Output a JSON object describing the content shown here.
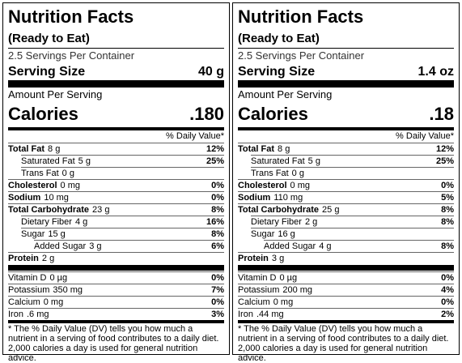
{
  "labels": [
    {
      "title": "Nutrition Facts",
      "subtitle": "(Ready to Eat)",
      "servings": "2.5 Servings Per Container",
      "serving_size_label": "Serving Size",
      "serving_size": "40 g",
      "amount_per_serving": "Amount Per Serving",
      "calories_label": "Calories",
      "calories": ".180",
      "dv_header": "% Daily Value*",
      "nutrients": [
        {
          "name": "Total Fat",
          "amount": "8 g",
          "dv": "12%"
        },
        {
          "name": "Saturated Fat",
          "amount": "5 g",
          "dv": "25%"
        },
        {
          "name": "Trans Fat",
          "amount": "0 g"
        },
        {
          "name": "Cholesterol",
          "amount": "0 mg",
          "dv": "0%"
        },
        {
          "name": "Sodium",
          "amount": "10 mg",
          "dv": "0%"
        },
        {
          "name": "Total Carbohydrate",
          "amount": "23 g",
          "dv": "8%"
        },
        {
          "name": "Dietary Fiber",
          "amount": "4 g",
          "dv": "16%"
        },
        {
          "name": "Sugar",
          "amount": "15 g",
          "dv": "8%"
        },
        {
          "name": "Added Sugar",
          "amount": "3 g",
          "dv": "6%"
        },
        {
          "name": "Protein",
          "amount": "2 g"
        }
      ],
      "vitamins": [
        {
          "name": "Vitamin D",
          "amount": "0 µg",
          "dv": "0%"
        },
        {
          "name": "Potassium",
          "amount": "350 mg",
          "dv": "7%"
        },
        {
          "name": "Calcium",
          "amount": "0 mg",
          "dv": "0%"
        },
        {
          "name": "Iron",
          "amount": ".6 mg",
          "dv": "3%"
        }
      ],
      "footnote": "* The % Daily Value (DV) tells you how much a nutrient in a serving of food contributes to a daily diet. 2,000 calories a day is used for general nutrition advice."
    },
    {
      "title": "Nutrition Facts",
      "subtitle": "(Ready to Eat)",
      "servings": "2.5 Servings Per Container",
      "serving_size_label": "Serving Size",
      "serving_size": "1.4 oz",
      "amount_per_serving": "Amount Per Serving",
      "calories_label": "Calories",
      "calories": ".18",
      "dv_header": "% Daily Value*",
      "nutrients": [
        {
          "name": "Total Fat",
          "amount": "8 g",
          "dv": "12%"
        },
        {
          "name": "Saturated Fat",
          "amount": "5 g",
          "dv": "25%"
        },
        {
          "name": "Trans Fat",
          "amount": "0 g"
        },
        {
          "name": "Cholesterol",
          "amount": "0 mg",
          "dv": "0%"
        },
        {
          "name": "Sodium",
          "amount": "110 mg",
          "dv": "5%"
        },
        {
          "name": "Total Carbohydrate",
          "amount": "25 g",
          "dv": "8%"
        },
        {
          "name": "Dietary Fiber",
          "amount": "2 g",
          "dv": "8%"
        },
        {
          "name": "Sugar",
          "amount": "16 g"
        },
        {
          "name": "Added Sugar",
          "amount": "4 g",
          "dv": "8%"
        },
        {
          "name": "Protein",
          "amount": "3 g"
        }
      ],
      "vitamins": [
        {
          "name": "Vitamin D",
          "amount": "0 µg",
          "dv": "0%"
        },
        {
          "name": "Potassium",
          "amount": "200 mg",
          "dv": "4%"
        },
        {
          "name": "Calcium",
          "amount": "0 mg",
          "dv": "0%"
        },
        {
          "name": "Iron",
          "amount": ".44 mg",
          "dv": "2%"
        }
      ],
      "footnote": "* The % Daily Value (DV) tells you how much a nutrient in a serving of food contributes to a daily diet. 2,000 calories a day is used for general nutrition advice."
    }
  ]
}
